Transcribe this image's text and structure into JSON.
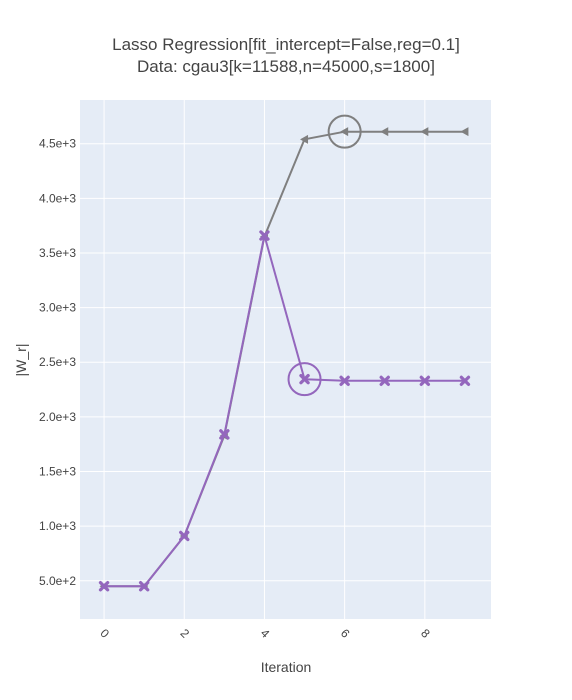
{
  "chart_data": {
    "type": "line",
    "title_line1": "Lasso Regression[fit_intercept=False,reg=0.1]",
    "title_line2": "Data: cgau3[k=11588,n=45000,s=1800]",
    "xlabel": "Iteration",
    "ylabel": "|W_r|",
    "xlim": [
      -0.6,
      9.65
    ],
    "ylim": [
      150,
      4900
    ],
    "xticks": [
      0,
      2,
      4,
      6,
      8
    ],
    "xtick_labels": [
      "0",
      "2",
      "4",
      "6",
      "8"
    ],
    "yticks": [
      500,
      1000,
      1500,
      2000,
      2500,
      3000,
      3500,
      4000,
      4500
    ],
    "ytick_labels": [
      "5.0e+2",
      "1.0e+3",
      "1.5e+3",
      "2.0e+3",
      "2.5e+3",
      "3.0e+3",
      "3.5e+3",
      "4.0e+3",
      "4.5e+3"
    ],
    "grid": true,
    "background": "#e5ecf6",
    "series": [
      {
        "color": "#7f7f7f",
        "marker": "triangle-left",
        "x": [
          0,
          1,
          2,
          3,
          4,
          5,
          6,
          7,
          8,
          9
        ],
        "y": [
          450,
          450,
          910,
          1830,
          3650,
          4540,
          4610,
          4610,
          4610,
          4610
        ],
        "highlight_index": 6
      },
      {
        "color": "#9467bd",
        "marker": "x",
        "x": [
          0,
          1,
          2,
          3,
          4,
          5,
          6,
          7,
          8,
          9
        ],
        "y": [
          450,
          450,
          910,
          1840,
          3660,
          2345,
          2330,
          2330,
          2330,
          2330
        ],
        "highlight_index": 5
      }
    ]
  }
}
